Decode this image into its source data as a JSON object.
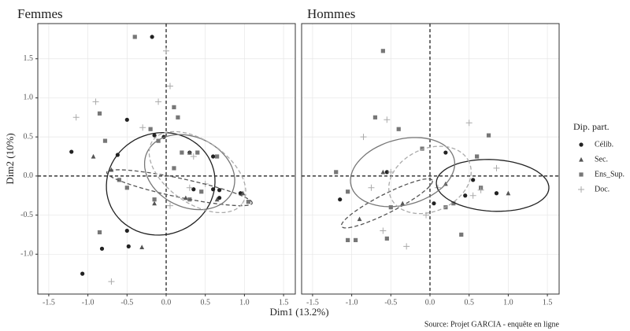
{
  "chart_data": [
    {
      "type": "scatter",
      "title": "Femmes",
      "xlim": [
        -1.64,
        1.65
      ],
      "ylim": [
        -1.51,
        1.95
      ],
      "xticks": [
        -1.5,
        {
          "value": -1,
          "label": "-1.0"
        },
        -0.5,
        {
          "value": 0,
          "label": "0.0"
        },
        0.5,
        {
          "value": 1,
          "label": "1.0"
        },
        1.5
      ],
      "yticks": [
        {
          "value": -1,
          "label": "-1.0"
        },
        -0.5,
        {
          "value": 0,
          "label": "0.0"
        },
        0.5,
        {
          "value": 1,
          "label": "1.0"
        },
        1.5
      ],
      "grid": true,
      "hline": 0,
      "vline": 0,
      "series": [
        {
          "name": "Célib.",
          "color": "#222222",
          "marker": "circle",
          "linetype": "solid",
          "x": [
            -1.21,
            -0.5,
            -0.62,
            -0.18,
            -0.15,
            -0.5,
            -0.82,
            -0.48,
            -1.07,
            0.6,
            0.68,
            0.68,
            0.6,
            -0.03,
            0.95,
            0.35,
            0.3
          ],
          "y": [
            0.31,
            0.72,
            0.27,
            1.78,
            0.52,
            -0.7,
            -0.93,
            -0.9,
            -1.25,
            -0.17,
            -0.18,
            -0.28,
            0.25,
            0.5,
            -0.22,
            -0.17,
            0.3
          ],
          "ellipse": {
            "cx": -0.07,
            "cy": -0.1,
            "rx": 0.7,
            "ry": 0.65,
            "angle": 20
          }
        },
        {
          "name": "Sec.",
          "color": "#555555",
          "marker": "triangle",
          "linetype": "dashed",
          "x": [
            -0.93,
            -0.7,
            -0.15,
            -0.31,
            0.3,
            0.65,
            0.25,
            0.98
          ],
          "y": [
            0.25,
            0.08,
            -0.35,
            -0.91,
            0.3,
            -0.3,
            -0.28,
            -0.22
          ],
          "ellipse": {
            "cx": 0.17,
            "cy": -0.15,
            "rx": 0.95,
            "ry": 0.12,
            "angle": -12
          }
        },
        {
          "name": "Ens_Sup.",
          "color": "#777777",
          "marker": "square",
          "linetype": "solid",
          "x": [
            -0.4,
            -0.85,
            -0.78,
            -0.85,
            0.1,
            0.15,
            -0.2,
            -0.1,
            -0.6,
            -0.5,
            0.1,
            0.2,
            0.4,
            0.65,
            0.3,
            1.05,
            -0.15,
            0.45
          ],
          "y": [
            1.78,
            0.8,
            0.45,
            -0.72,
            0.88,
            0.75,
            0.6,
            0.45,
            -0.05,
            -0.15,
            0.1,
            0.3,
            0.3,
            0.25,
            -0.3,
            -0.33,
            -0.3,
            -0.2
          ],
          "ellipse": {
            "cx": 0.3,
            "cy": 0.05,
            "rx": 0.6,
            "ry": 0.45,
            "angle": -25
          }
        },
        {
          "name": "Doc.",
          "color": "#aaaaaa",
          "marker": "plus",
          "linetype": "dashed",
          "x": [
            -0.9,
            -1.15,
            -0.1,
            0,
            0.05,
            -0.3,
            -0.7,
            0.35,
            0.5,
            0.05,
            0.3
          ],
          "y": [
            0.95,
            0.75,
            0.95,
            1.6,
            1.15,
            0.62,
            -1.35,
            0.25,
            -0.1,
            -0.38,
            -0.15
          ],
          "ellipse": {
            "cx": 0.4,
            "cy": 0.05,
            "rx": 0.7,
            "ry": 0.4,
            "angle": -35
          }
        }
      ]
    },
    {
      "type": "scatter",
      "title": "Hommes",
      "xlim": [
        -1.64,
        1.65
      ],
      "ylim": [
        -1.51,
        1.95
      ],
      "xticks": [
        -1.5,
        {
          "value": -1,
          "label": "-1.0"
        },
        -0.5,
        {
          "value": 0,
          "label": "0.0"
        },
        0.5,
        {
          "value": 1,
          "label": "1.0"
        },
        1.5
      ],
      "yticks": [
        -1,
        -0.5,
        0,
        0.5,
        1,
        1.5
      ],
      "grid": true,
      "hline": 0,
      "vline": 0,
      "series": [
        {
          "name": "Célib.",
          "color": "#222222",
          "marker": "circle",
          "linetype": "solid",
          "x": [
            -1.15,
            0.2,
            0.55,
            0.85,
            0.05,
            -0.55,
            0.45
          ],
          "y": [
            -0.3,
            0.3,
            -0.05,
            -0.22,
            -0.35,
            0.05,
            -0.25
          ],
          "ellipse": {
            "cx": 0.8,
            "cy": -0.12,
            "rx": 0.72,
            "ry": 0.33,
            "angle": -3
          }
        },
        {
          "name": "Sec.",
          "color": "#555555",
          "marker": "triangle",
          "linetype": "dashed",
          "x": [
            -0.9,
            -0.6,
            0.2,
            1.0,
            -0.35
          ],
          "y": [
            -0.55,
            0.05,
            -0.1,
            -0.22,
            -0.35
          ],
          "ellipse": {
            "cx": -0.55,
            "cy": -0.35,
            "rx": 0.65,
            "ry": 0.12,
            "angle": 27
          }
        },
        {
          "name": "Ens_Sup.",
          "color": "#777777",
          "marker": "square",
          "linetype": "solid",
          "x": [
            -0.6,
            -0.7,
            -1.2,
            -1.05,
            -0.95,
            -1.05,
            -0.55,
            -0.4,
            -0.1,
            0.4,
            0.3,
            0.75,
            0.6,
            -0.5,
            0.65,
            0.2
          ],
          "y": [
            1.6,
            0.75,
            0.05,
            -0.2,
            -0.82,
            -0.82,
            -0.8,
            0.6,
            0.35,
            -0.75,
            -0.35,
            0.52,
            0.25,
            -0.4,
            -0.15,
            -0.4
          ],
          "ellipse": {
            "cx": -0.35,
            "cy": 0.05,
            "rx": 0.68,
            "ry": 0.42,
            "angle": 15
          }
        },
        {
          "name": "Doc.",
          "color": "#aaaaaa",
          "marker": "plus",
          "linetype": "dashed",
          "x": [
            -0.85,
            -0.55,
            -0.3,
            -0.6,
            0.5,
            0.65,
            -0.05,
            0.1,
            0.55,
            -0.5,
            0.85,
            -0.75
          ],
          "y": [
            0.5,
            0.72,
            -0.9,
            -0.7,
            0.68,
            -0.18,
            -0.5,
            -0.15,
            -0.25,
            0.05,
            0.1,
            -0.15
          ],
          "ellipse": {
            "cx": 0,
            "cy": -0.05,
            "rx": 0.55,
            "ry": 0.4,
            "angle": 25
          }
        }
      ]
    }
  ],
  "x_label": "Dim1 (13.2%)",
  "y_label": "Dim2 (10%)",
  "legend_title": "Dip. part.",
  "caption": "Source: Projet GARCIA - enquête en ligne"
}
